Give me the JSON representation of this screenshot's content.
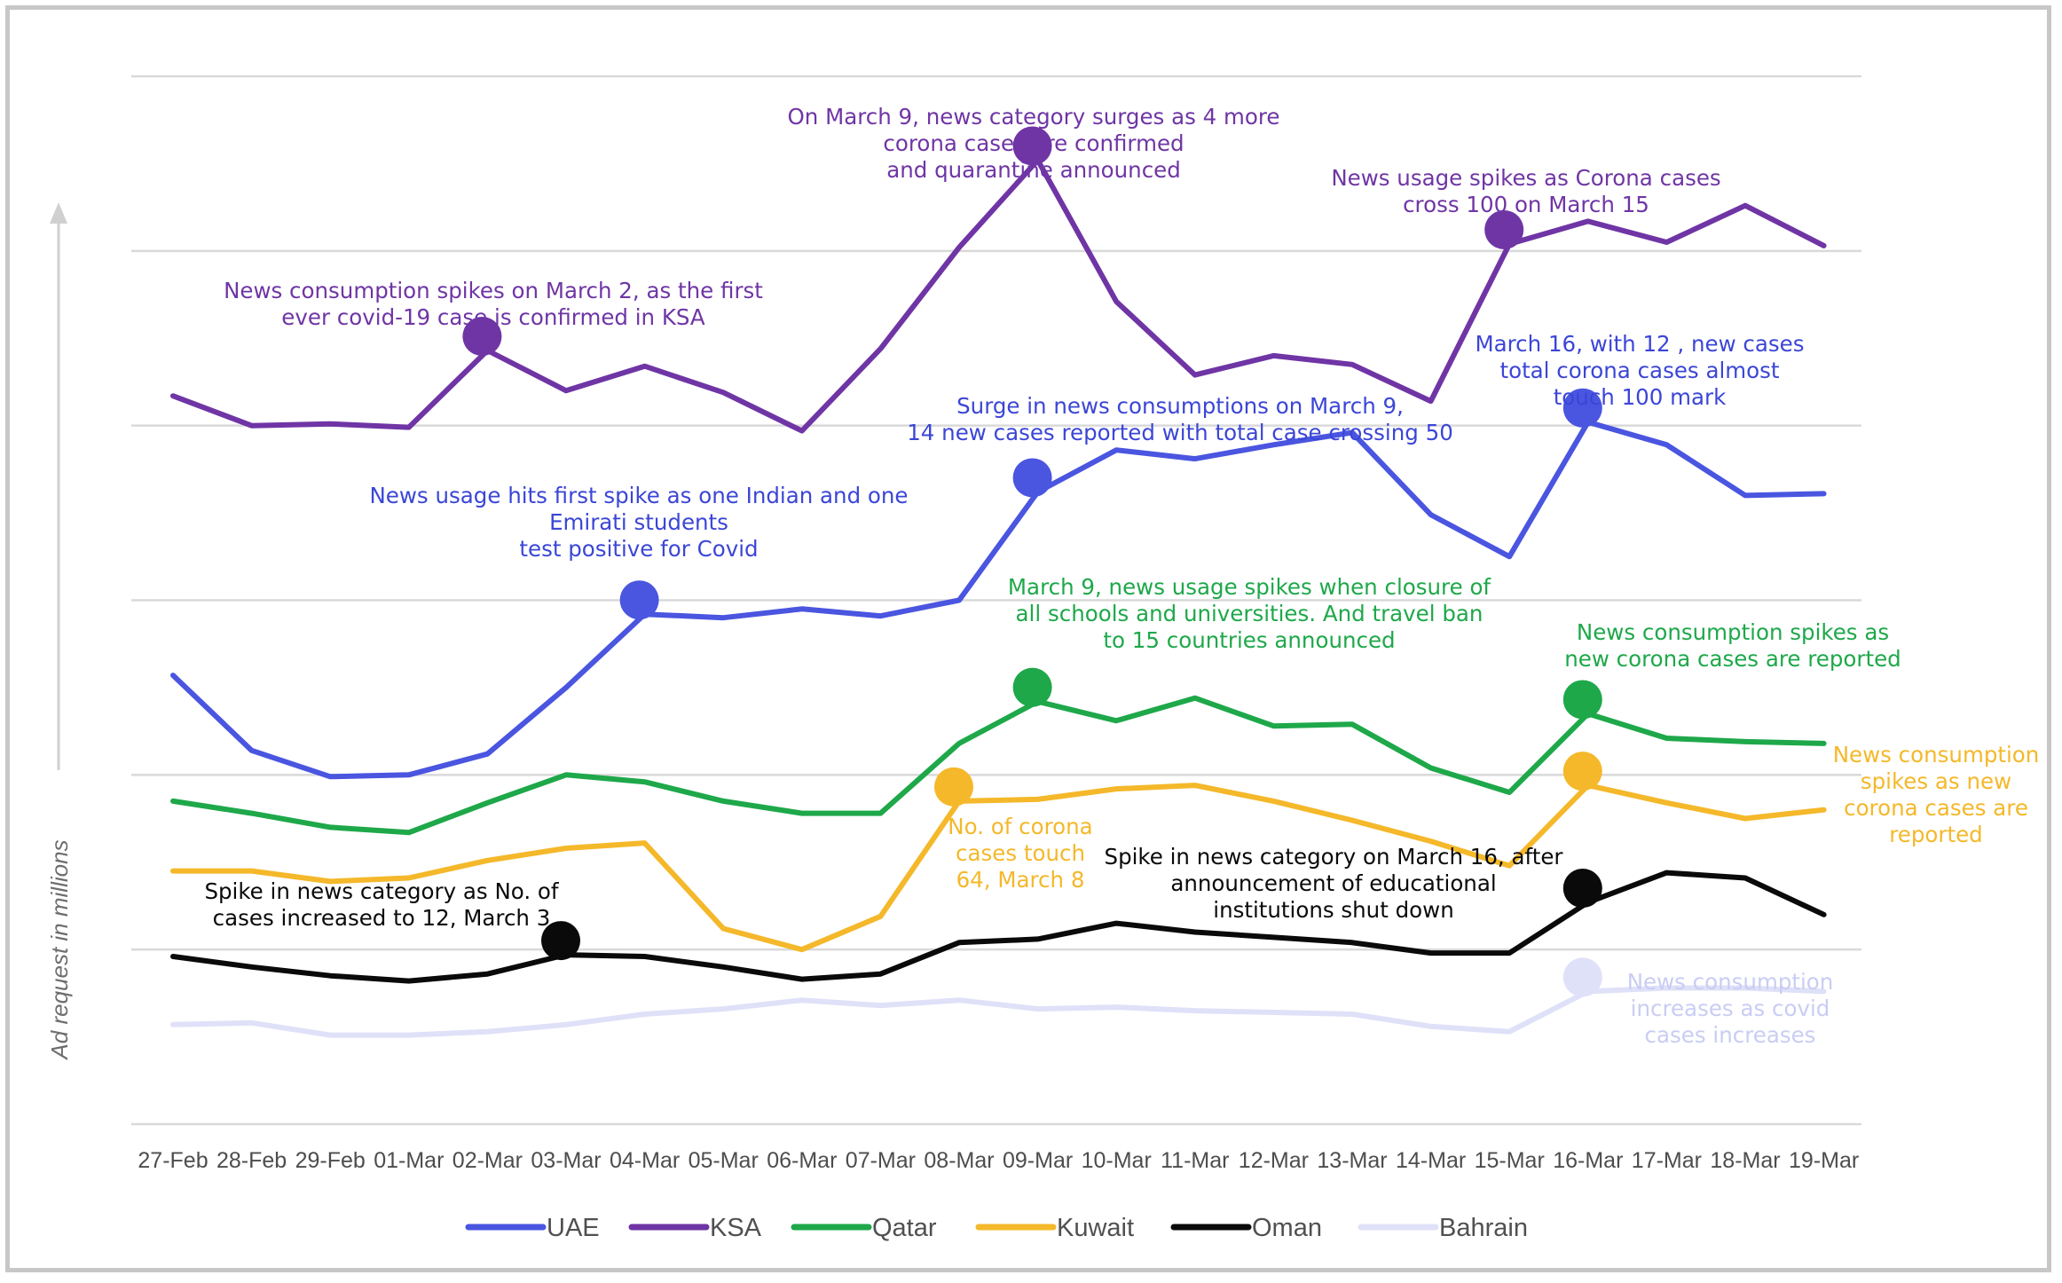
{
  "chart_data": {
    "type": "line",
    "title": "",
    "xlabel": "",
    "ylabel": "Ad request in millions",
    "ylim": [
      0,
      6
    ],
    "grid": true,
    "legend_position": "bottom",
    "categories": [
      "27-Feb",
      "28-Feb",
      "29-Feb",
      "01-Mar",
      "02-Mar",
      "03-Mar",
      "04-Mar",
      "05-Mar",
      "06-Mar",
      "07-Mar",
      "08-Mar",
      "09-Mar",
      "10-Mar",
      "11-Mar",
      "12-Mar",
      "13-Mar",
      "14-Mar",
      "15-Mar",
      "16-Mar",
      "17-Mar",
      "18-Mar",
      "19-Mar"
    ],
    "series": [
      {
        "name": "UAE",
        "color": "#4a55e0",
        "values": [
          2.57,
          2.14,
          1.99,
          2.0,
          2.12,
          2.5,
          2.92,
          2.9,
          2.95,
          2.91,
          3.0,
          3.62,
          3.86,
          3.81,
          3.89,
          3.96,
          3.49,
          3.25,
          4.02,
          3.89,
          3.6,
          3.61
        ]
      },
      {
        "name": "KSA",
        "color": "#6f35a5",
        "values": [
          4.17,
          4.0,
          4.01,
          3.99,
          4.43,
          4.2,
          4.34,
          4.19,
          3.97,
          4.44,
          5.02,
          5.52,
          4.71,
          4.29,
          4.4,
          4.35,
          4.14,
          5.04,
          5.17,
          5.05,
          5.26,
          5.03
        ]
      },
      {
        "name": "Qatar",
        "color": "#1ea84a",
        "values": [
          1.85,
          1.78,
          1.7,
          1.67,
          1.84,
          2.0,
          1.96,
          1.85,
          1.78,
          1.78,
          2.18,
          2.42,
          2.31,
          2.44,
          2.28,
          2.29,
          2.04,
          1.9,
          2.35,
          2.21,
          2.19,
          2.18
        ]
      },
      {
        "name": "Kuwait",
        "color": "#f4b82a",
        "values": [
          1.45,
          1.45,
          1.39,
          1.41,
          1.51,
          1.58,
          1.61,
          1.12,
          1.0,
          1.19,
          1.85,
          1.86,
          1.92,
          1.94,
          1.85,
          1.74,
          1.62,
          1.48,
          1.94,
          1.84,
          1.75,
          1.8
        ]
      },
      {
        "name": "Oman",
        "color": "#0a0a0a",
        "values": [
          0.96,
          0.9,
          0.85,
          0.82,
          0.86,
          0.97,
          0.96,
          0.9,
          0.83,
          0.86,
          1.04,
          1.06,
          1.15,
          1.1,
          1.07,
          1.04,
          0.98,
          0.98,
          1.27,
          1.44,
          1.41,
          1.2
        ]
      },
      {
        "name": "Bahrain",
        "color": "#dfe1f8",
        "values": [
          0.57,
          0.58,
          0.51,
          0.51,
          0.53,
          0.57,
          0.63,
          0.66,
          0.71,
          0.68,
          0.71,
          0.66,
          0.67,
          0.65,
          0.64,
          0.63,
          0.56,
          0.53,
          0.76,
          0.78,
          0.78,
          0.76
        ]
      }
    ],
    "highlights": [
      {
        "series": 1,
        "index": 4
      },
      {
        "series": 1,
        "index": 11
      },
      {
        "series": 1,
        "index": 17
      },
      {
        "series": 0,
        "index": 6
      },
      {
        "series": 0,
        "index": 11
      },
      {
        "series": 0,
        "index": 18
      },
      {
        "series": 2,
        "index": 11
      },
      {
        "series": 2,
        "index": 18
      },
      {
        "series": 3,
        "index": 10
      },
      {
        "series": 3,
        "index": 18
      },
      {
        "series": 4,
        "index": 5
      },
      {
        "series": 4,
        "index": 18
      },
      {
        "series": 5,
        "index": 18
      }
    ],
    "annotations": [
      {
        "color": "#6f35a5",
        "lines": [
          "News consumption spikes on March 2, as the first",
          "ever covid-19 case is confirmed in KSA"
        ]
      },
      {
        "color": "#6f35a5",
        "lines": [
          "On March 9,  news category surges as 4 more",
          "corona cases are confirmed",
          "and quarantine announced"
        ]
      },
      {
        "color": "#6f35a5",
        "lines": [
          "News usage spikes as Corona cases",
          "cross 100 on March 15"
        ]
      },
      {
        "color": "#3b46d6",
        "lines": [
          "March 16, with 12 , new cases",
          "total corona cases almost",
          "touch 100 mark"
        ]
      },
      {
        "color": "#3b46d6",
        "lines": [
          "Surge in news consumptions on March 9,",
          "14 new cases reported with total case crossing 50"
        ]
      },
      {
        "color": "#3b46d6",
        "lines": [
          "News usage hits first spike as one Indian and one",
          "Emirati students",
          "test positive for Covid"
        ]
      },
      {
        "color": "#1ea84a",
        "lines": [
          "March 9, news usage spikes when closure of",
          "all schools and universities. And travel ban",
          "to 15 countries announced"
        ]
      },
      {
        "color": "#1ea84a",
        "lines": [
          "News consumption spikes as",
          "new corona cases are reported"
        ]
      },
      {
        "color": "#f4b82a",
        "lines": [
          "News consumption",
          "spikes as new",
          "corona cases are",
          "reported"
        ]
      },
      {
        "color": "#f4b82a",
        "lines": [
          "No. of corona",
          "cases touch",
          "64, March 8"
        ]
      },
      {
        "color": "#0a0a0a",
        "lines": [
          "Spike in news category on March 16, after",
          "announcement of educational",
          "institutions shut down"
        ]
      },
      {
        "color": "#0a0a0a",
        "lines": [
          "Spike in news category as No. of",
          "cases increased to 12, March 3"
        ]
      },
      {
        "color": "#c9cdf3",
        "lines": [
          "News consumption",
          "increases as covid",
          "cases increases"
        ]
      }
    ]
  }
}
